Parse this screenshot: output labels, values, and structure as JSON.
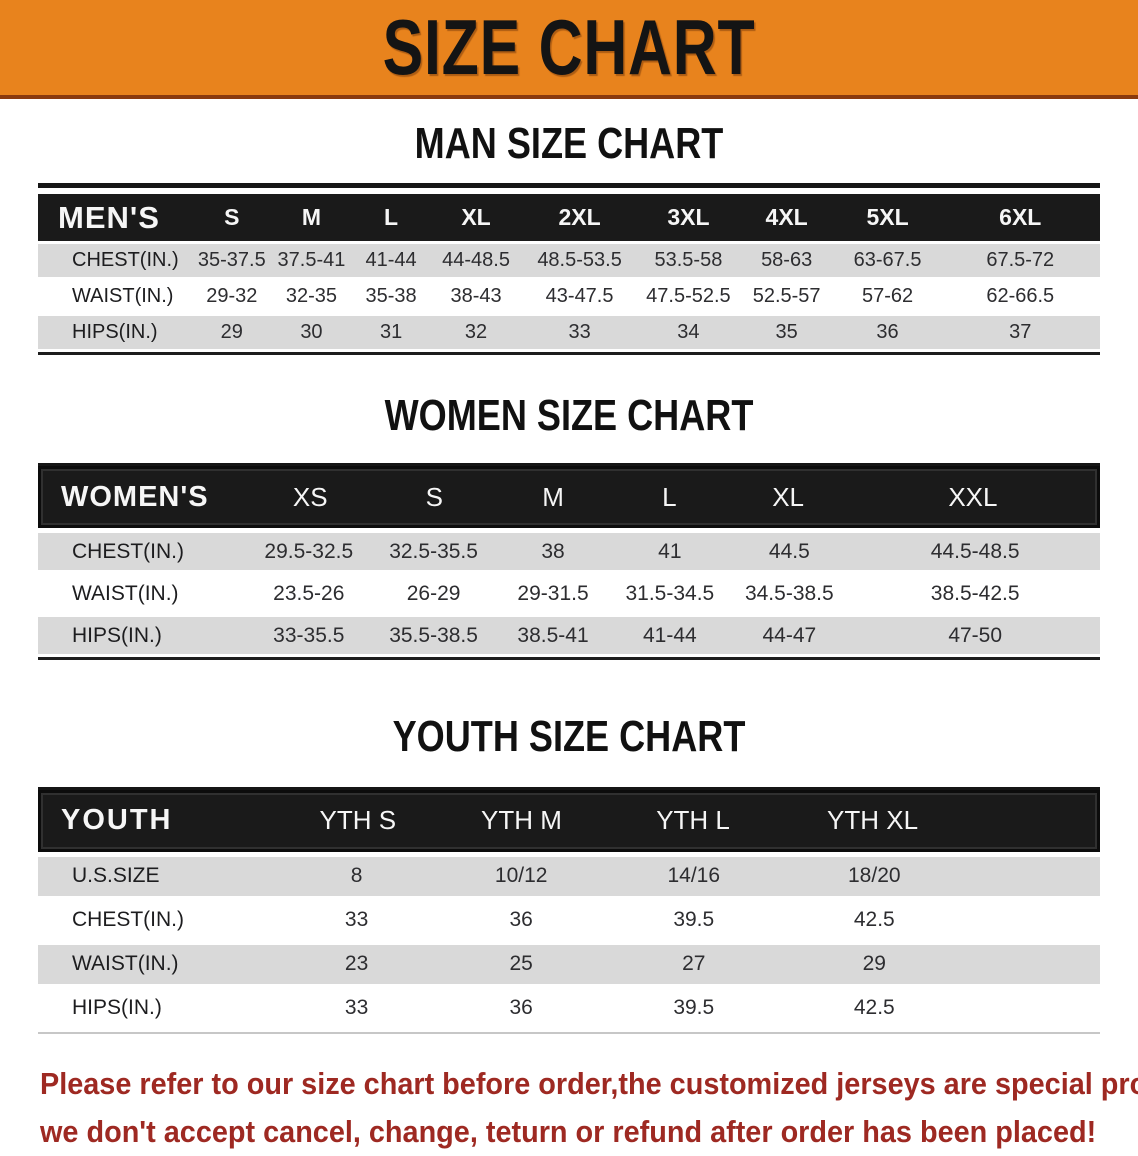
{
  "banner": {
    "title": "SIZE CHART",
    "background_color": "#e8831d",
    "text_color": "#141414"
  },
  "sections": [
    {
      "heading": "MAN SIZE CHART",
      "corner_label": "MEN'S",
      "columns": [
        "S",
        "M",
        "L",
        "XL",
        "2XL",
        "3XL",
        "4XL",
        "5XL",
        "6XL"
      ],
      "rows": [
        {
          "label": "CHEST(IN.)",
          "values": [
            "35-37.5",
            "37.5-41",
            "41-44",
            "44-48.5",
            "48.5-53.5",
            "53.5-58",
            "58-63",
            "63-67.5",
            "67.5-72"
          ]
        },
        {
          "label": "WAIST(IN.)",
          "values": [
            "29-32",
            "32-35",
            "35-38",
            "38-43",
            "43-47.5",
            "47.5-52.5",
            "52.5-57",
            "57-62",
            "62-66.5"
          ]
        },
        {
          "label": "HIPS(IN.)",
          "values": [
            "29",
            "30",
            "31",
            "32",
            "33",
            "34",
            "35",
            "36",
            "37"
          ]
        }
      ]
    },
    {
      "heading": "WOMEN SIZE CHART",
      "corner_label": "WOMEN'S",
      "columns": [
        "XS",
        "S",
        "M",
        "L",
        "XL",
        "XXL"
      ],
      "rows": [
        {
          "label": "CHEST(IN.)",
          "values": [
            "29.5-32.5",
            "32.5-35.5",
            "38",
            "41",
            "44.5",
            "44.5-48.5"
          ]
        },
        {
          "label": "WAIST(IN.)",
          "values": [
            "23.5-26",
            "26-29",
            "29-31.5",
            "31.5-34.5",
            "34.5-38.5",
            "38.5-42.5"
          ]
        },
        {
          "label": "HIPS(IN.)",
          "values": [
            "33-35.5",
            "35.5-38.5",
            "38.5-41",
            "41-44",
            "44-47",
            "47-50"
          ]
        }
      ]
    },
    {
      "heading": "YOUTH SIZE CHART",
      "corner_label": "YOUTH",
      "columns": [
        "YTH S",
        "YTH M",
        "YTH L",
        "YTH XL"
      ],
      "rows": [
        {
          "label": "U.S.SIZE",
          "values": [
            "8",
            "10/12",
            "14/16",
            "18/20"
          ]
        },
        {
          "label": "CHEST(IN.)",
          "values": [
            "33",
            "36",
            "39.5",
            "42.5"
          ]
        },
        {
          "label": "WAIST(IN.)",
          "values": [
            "23",
            "25",
            "27",
            "29"
          ]
        },
        {
          "label": "HIPS(IN.)",
          "values": [
            "33",
            "36",
            "39.5",
            "42.5"
          ]
        }
      ]
    }
  ],
  "disclaimer": {
    "line1": "Please refer to our size chart before order,the customized jerseys are special products,",
    "line2": "we don't accept cancel, change, teturn or refund after order has been placed!",
    "text_color": "#9e2922"
  },
  "colors": {
    "banner_orange": "#e8831d",
    "banner_edge": "#8a3a0e",
    "header_band_black": "#1a1a1a",
    "shaded_row_gray": "#d9d9d9",
    "disclaimer_red": "#9e2922"
  }
}
